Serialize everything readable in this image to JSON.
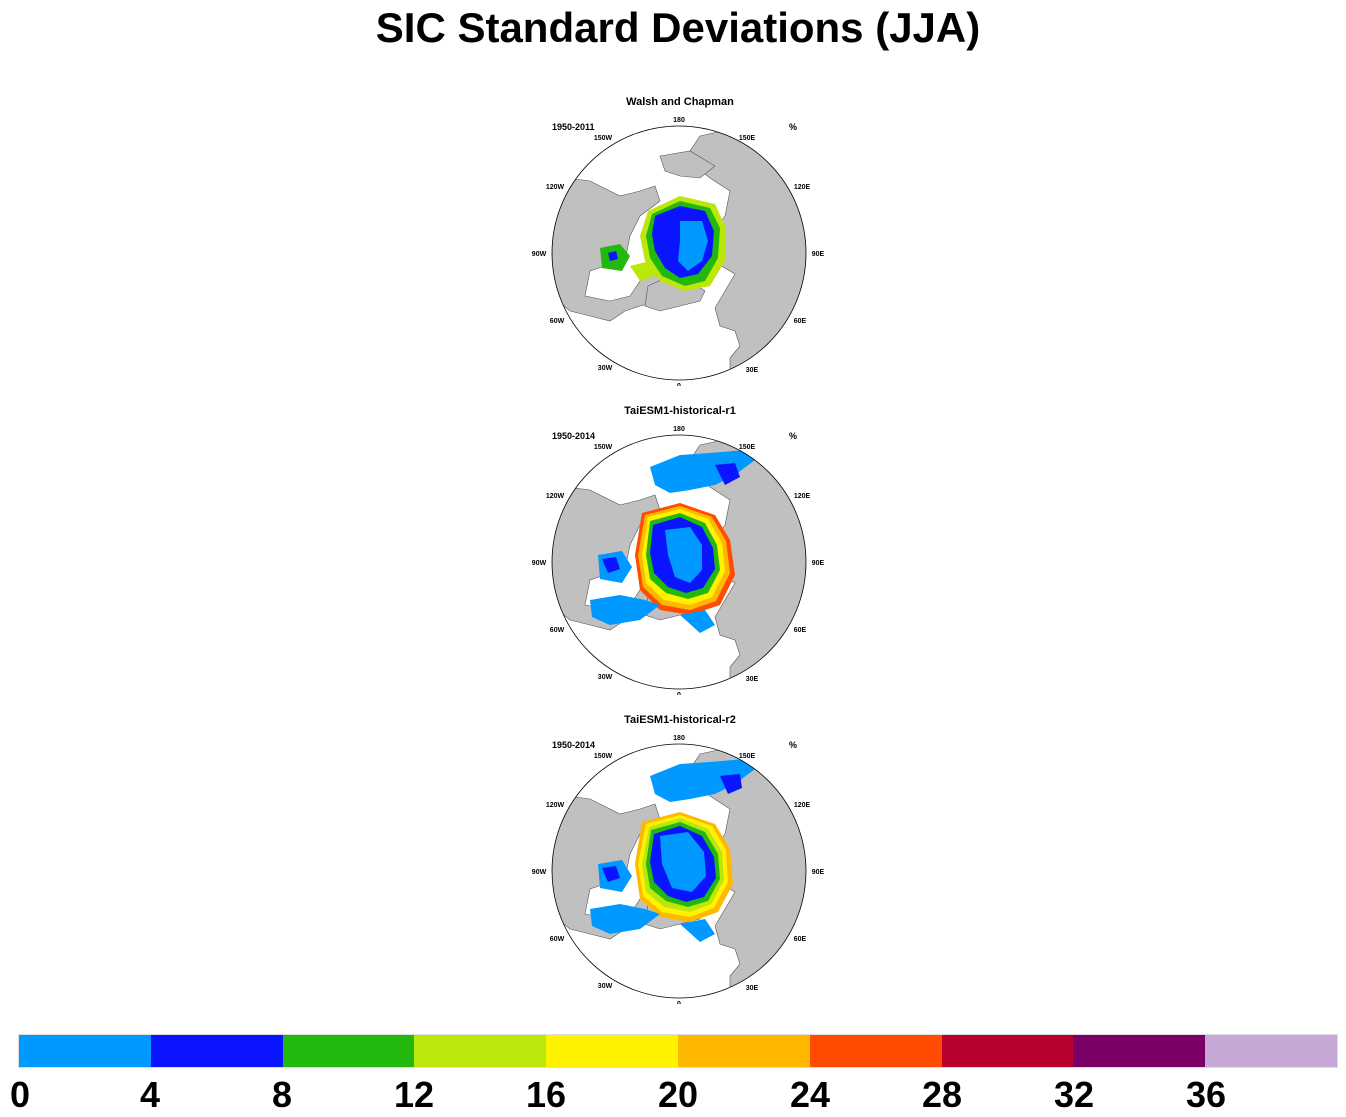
{
  "title": "SIC Standard Deviations (JJA)",
  "panels": [
    {
      "title": "Walsh and Chapman",
      "years": "1950-2011",
      "units": "%"
    },
    {
      "title": "TaiESM1-historical-r1",
      "years": "1950-2014",
      "units": "%"
    },
    {
      "title": "TaiESM1-historical-r2",
      "years": "1950-2014",
      "units": "%"
    }
  ],
  "longitude_labels": {
    "l180": "180",
    "l150e": "150E",
    "l120e": "120E",
    "l90e": "90E",
    "l60e": "60E",
    "l30e": "30E",
    "l0": "0",
    "l30w": "30W",
    "l60w": "60W",
    "l90w": "90W",
    "l120w": "120W",
    "l150w": "150W"
  },
  "colorbar": {
    "colors": [
      "#0099ff",
      "#0a14ff",
      "#22b80e",
      "#bce70a",
      "#fff200",
      "#ffb800",
      "#ff4c00",
      "#b8002e",
      "#7b0066",
      "#c6a8d6"
    ],
    "labels": [
      "0",
      "4",
      "8",
      "12",
      "16",
      "20",
      "24",
      "28",
      "32",
      "36"
    ]
  },
  "colors": {
    "land": "#c0c0c0",
    "ocean": "#ffffff",
    "coast": "#555555"
  }
}
